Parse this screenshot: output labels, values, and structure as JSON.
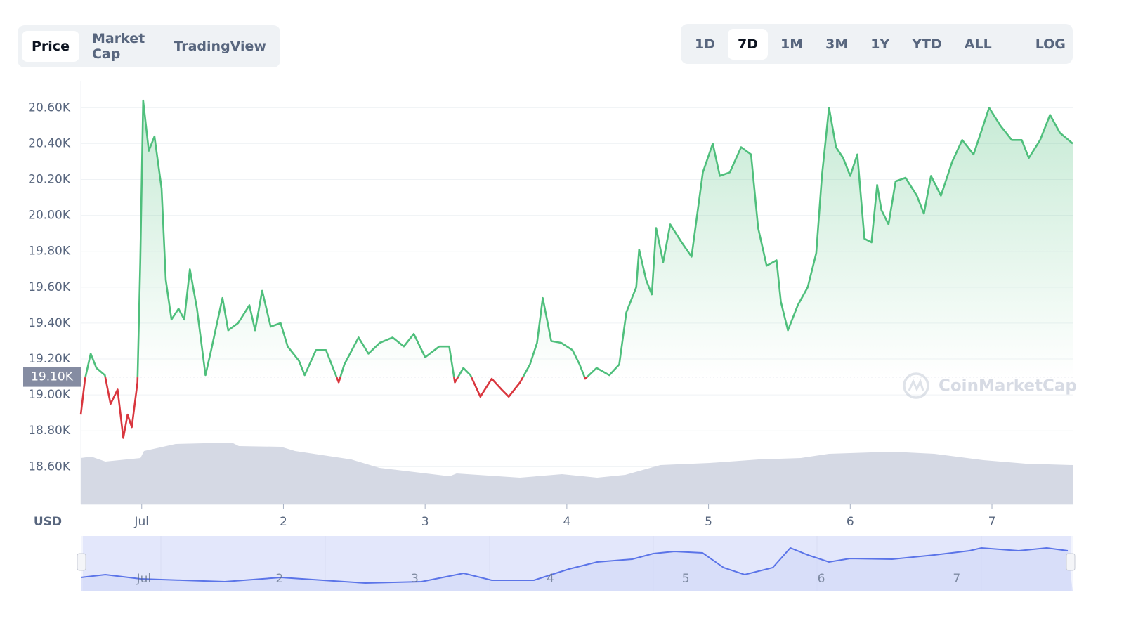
{
  "tabs": [
    "Price",
    "Market Cap",
    "TradingView"
  ],
  "active_tab": "Price",
  "ranges": [
    "1D",
    "7D",
    "1M",
    "3M",
    "1Y",
    "YTD",
    "ALL"
  ],
  "active_range": "7D",
  "log_button": "LOG",
  "chart_data": {
    "type": "line",
    "currency": "USD",
    "watermark": "CoinMarketCap",
    "reference": {
      "value": 19100,
      "label": "19.10K"
    },
    "up_color": "#4fbf7c",
    "down_color": "#d9363e",
    "x": [
      0.57,
      0.6,
      0.64,
      0.68,
      0.74,
      0.78,
      0.83,
      0.87,
      0.9,
      0.93,
      0.97,
      0.99,
      1.01,
      1.05,
      1.09,
      1.14,
      1.17,
      1.21,
      1.26,
      1.3,
      1.34,
      1.39,
      1.45,
      1.49,
      1.57,
      1.61,
      1.68,
      1.76,
      1.8,
      1.85,
      1.91,
      1.98,
      2.03,
      2.11,
      2.15,
      2.23,
      2.3,
      2.39,
      2.43,
      2.53,
      2.6,
      2.68,
      2.77,
      2.85,
      2.92,
      3.0,
      3.1,
      3.17,
      3.21,
      3.27,
      3.32,
      3.39,
      3.47,
      3.54,
      3.59,
      3.67,
      3.74,
      3.79,
      3.83,
      3.89,
      3.96,
      4.04,
      4.09,
      4.13,
      4.21,
      4.3,
      4.37,
      4.42,
      4.49,
      4.51,
      4.56,
      4.6,
      4.63,
      4.68,
      4.73,
      4.81,
      4.88,
      4.96,
      5.03,
      5.08,
      5.15,
      5.23,
      5.3,
      5.35,
      5.41,
      5.48,
      5.51,
      5.56,
      5.63,
      5.7,
      5.76,
      5.8,
      5.85,
      5.9,
      5.95,
      6.0,
      6.05,
      6.1,
      6.15,
      6.19,
      6.22,
      6.27,
      6.32,
      6.39,
      6.47,
      6.52,
      6.57,
      6.64,
      6.72,
      6.79,
      6.87,
      6.93,
      6.98,
      7.06,
      7.14,
      7.21,
      7.26,
      7.34,
      7.41,
      7.48,
      7.57
    ],
    "series": [
      {
        "name": "Price",
        "values": [
          18890,
          19090,
          19230,
          19150,
          19110,
          18950,
          19030,
          18760,
          18890,
          18820,
          19070,
          19740,
          20640,
          20360,
          20440,
          20150,
          19640,
          19420,
          19480,
          19420,
          19700,
          19480,
          19110,
          19250,
          19540,
          19360,
          19400,
          19500,
          19360,
          19580,
          19380,
          19400,
          19270,
          19190,
          19110,
          19250,
          19250,
          19070,
          19170,
          19320,
          19230,
          19290,
          19320,
          19270,
          19340,
          19210,
          19270,
          19270,
          19070,
          19150,
          19110,
          18990,
          19090,
          19030,
          18990,
          19070,
          19170,
          19290,
          19540,
          19300,
          19290,
          19250,
          19170,
          19090,
          19150,
          19110,
          19170,
          19460,
          19600,
          19810,
          19640,
          19560,
          19930,
          19740,
          19950,
          19850,
          19770,
          20240,
          20400,
          20220,
          20240,
          20380,
          20340,
          19930,
          19720,
          19750,
          19520,
          19360,
          19500,
          19600,
          19790,
          20220,
          20600,
          20380,
          20320,
          20220,
          20340,
          19870,
          19850,
          20170,
          20030,
          19950,
          20190,
          20210,
          20110,
          20010,
          20220,
          20110,
          20300,
          20420,
          20340,
          20480,
          20600,
          20500,
          20420,
          20420,
          20320,
          20420,
          20560,
          20460,
          20400
        ]
      }
    ],
    "xlim": [
      0.57,
      7.57
    ],
    "xticks": [
      {
        "value": 1,
        "label": "Jul"
      },
      2,
      3,
      4,
      5,
      6,
      7
    ],
    "ylim": [
      18390,
      20750
    ],
    "yticks": [
      {
        "value": 18600,
        "label": "18.60K"
      },
      {
        "value": 18800,
        "label": "18.80K"
      },
      {
        "value": 19000,
        "label": "19.00K"
      },
      {
        "value": 19200,
        "label": "19.20K"
      },
      {
        "value": 19400,
        "label": "19.40K"
      },
      {
        "value": 19600,
        "label": "19.60K"
      },
      {
        "value": 19800,
        "label": "19.80K"
      },
      {
        "value": 20000,
        "label": "20.00K"
      },
      {
        "value": 20200,
        "label": "20.20K"
      },
      {
        "value": 20400,
        "label": "20.40K"
      },
      {
        "value": 20600,
        "label": "20.60K"
      }
    ],
    "grid": true
  }
}
